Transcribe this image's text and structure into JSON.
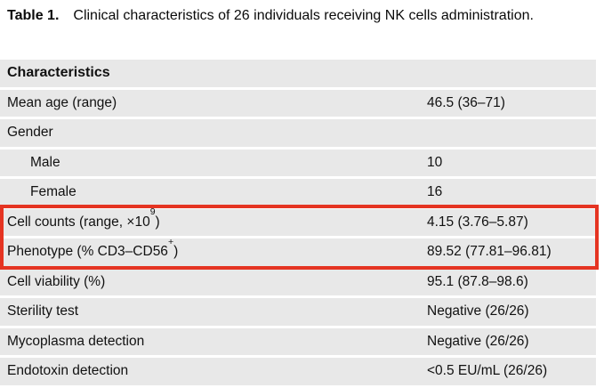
{
  "caption": {
    "label": "Table 1.",
    "text": "Clinical characteristics of 26 individuals receiving NK cells administration."
  },
  "table": {
    "rows": [
      {
        "pre": "Characteristics",
        "sup": "",
        "post": "",
        "value": ""
      },
      {
        "pre": "Mean age (range)",
        "sup": "",
        "post": "",
        "value": "46.5 (36–71)"
      },
      {
        "pre": "Gender",
        "sup": "",
        "post": "",
        "value": ""
      },
      {
        "pre": "Male",
        "sup": "",
        "post": "",
        "value": "10"
      },
      {
        "pre": "Female",
        "sup": "",
        "post": "",
        "value": "16"
      },
      {
        "pre": "Cell counts (range, ×10",
        "sup": "9",
        "post": ")",
        "value": "4.15 (3.76–5.87)"
      },
      {
        "pre": "Phenotype (% CD3–CD56",
        "sup": "+",
        "post": ")",
        "value": "89.52 (77.81–96.81)"
      },
      {
        "pre": "Cell viability (%)",
        "sup": "",
        "post": "",
        "value": "95.1 (87.8–98.6)"
      },
      {
        "pre": "Sterility test",
        "sup": "",
        "post": "",
        "value": "Negative (26/26)"
      },
      {
        "pre": "Mycoplasma detection",
        "sup": "",
        "post": "",
        "value": "Negative (26/26)"
      },
      {
        "pre": "Endotoxin detection",
        "sup": "",
        "post": "",
        "value": "<0.5 EU/mL (26/26)"
      }
    ]
  },
  "colors": {
    "highlight_red": "#e53422",
    "row_gray": "#e8e8e8"
  }
}
